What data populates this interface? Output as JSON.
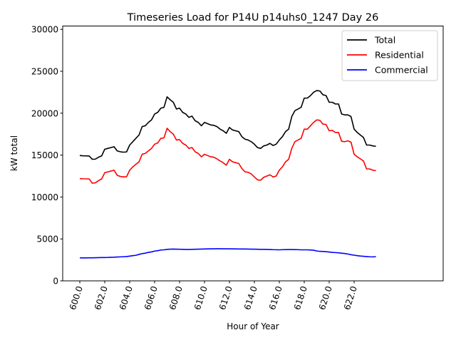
{
  "chart_data": {
    "type": "line",
    "title": "Timeseries Load for P14U p14uhs0_1247  Day 26",
    "xlabel": "Hour of Year",
    "ylabel": "kW total",
    "xlim": [
      598.8,
      624.5
    ],
    "ylim": [
      0,
      30400
    ],
    "xticks": [
      600,
      602,
      604,
      606,
      608,
      610,
      612,
      614,
      616,
      618,
      620,
      622
    ],
    "xtick_labels": [
      "600.0",
      "602.0",
      "604.0",
      "606.0",
      "608.0",
      "610.0",
      "612.0",
      "614.0",
      "616.0",
      "618.0",
      "620.0",
      "622.0"
    ],
    "yticks": [
      0,
      5000,
      10000,
      15000,
      20000,
      25000,
      30000
    ],
    "ytick_labels": [
      "0",
      "5000",
      "10000",
      "15000",
      "20000",
      "25000",
      "30000"
    ],
    "grid": false,
    "legend_position": "top-right",
    "x_start": 600,
    "x_step": 0.25,
    "series": [
      {
        "name": "Total",
        "color": "#000000",
        "values": [
          14950,
          14920,
          14910,
          14900,
          14500,
          14520,
          14750,
          14900,
          15700,
          15800,
          15900,
          16000,
          15500,
          15400,
          15350,
          15380,
          16200,
          16600,
          17000,
          17400,
          18400,
          18500,
          18900,
          19200,
          19900,
          20100,
          20600,
          20700,
          21950,
          21600,
          21300,
          20500,
          20600,
          20100,
          19900,
          19500,
          19650,
          19100,
          18900,
          18500,
          18900,
          18750,
          18600,
          18550,
          18400,
          18100,
          17900,
          17600,
          18300,
          18000,
          17900,
          17800,
          17200,
          16900,
          16800,
          16600,
          16300,
          15900,
          15800,
          16100,
          16200,
          16400,
          16150,
          16300,
          16800,
          17200,
          17800,
          18100,
          19600,
          20300,
          20500,
          20700,
          21800,
          21800,
          22100,
          22500,
          22700,
          22650,
          22200,
          22100,
          21300,
          21300,
          21100,
          21100,
          19900,
          19800,
          19800,
          19600,
          18100,
          17700,
          17400,
          17100,
          16200,
          16200,
          16100,
          16050
        ]
      },
      {
        "name": "Residential",
        "color": "#ff0000",
        "values": [
          12200,
          12180,
          12170,
          12160,
          11650,
          11700,
          11950,
          12150,
          12900,
          13000,
          13100,
          13200,
          12600,
          12450,
          12400,
          12420,
          13200,
          13600,
          13900,
          14200,
          15100,
          15200,
          15500,
          15800,
          16300,
          16450,
          17000,
          17050,
          18200,
          17800,
          17500,
          16800,
          16850,
          16400,
          16200,
          15800,
          15900,
          15400,
          15200,
          14800,
          15100,
          14950,
          14800,
          14750,
          14550,
          14300,
          14100,
          13800,
          14500,
          14200,
          14100,
          14000,
          13400,
          13000,
          12950,
          12750,
          12400,
          12050,
          12000,
          12350,
          12500,
          12650,
          12400,
          12500,
          13200,
          13600,
          14200,
          14500,
          15800,
          16600,
          16800,
          17000,
          18100,
          18100,
          18500,
          18900,
          19200,
          19150,
          18700,
          18650,
          17900,
          17950,
          17700,
          17700,
          16650,
          16600,
          16700,
          16550,
          15100,
          14800,
          14550,
          14300,
          13350,
          13350,
          13200,
          13150
        ]
      },
      {
        "name": "Commercial",
        "color": "#0000ff",
        "values": [
          2750,
          2740,
          2740,
          2750,
          2750,
          2760,
          2770,
          2780,
          2780,
          2790,
          2810,
          2820,
          2840,
          2860,
          2880,
          2900,
          2950,
          3000,
          3050,
          3150,
          3250,
          3300,
          3400,
          3450,
          3550,
          3600,
          3680,
          3700,
          3760,
          3780,
          3790,
          3780,
          3770,
          3760,
          3750,
          3750,
          3760,
          3770,
          3780,
          3790,
          3800,
          3810,
          3820,
          3820,
          3830,
          3830,
          3820,
          3820,
          3820,
          3810,
          3810,
          3800,
          3800,
          3800,
          3790,
          3780,
          3780,
          3770,
          3760,
          3760,
          3750,
          3740,
          3720,
          3710,
          3700,
          3720,
          3730,
          3740,
          3740,
          3730,
          3720,
          3700,
          3700,
          3700,
          3680,
          3650,
          3560,
          3520,
          3500,
          3480,
          3440,
          3400,
          3370,
          3340,
          3300,
          3260,
          3200,
          3120,
          3060,
          3000,
          2960,
          2930,
          2900,
          2870,
          2860,
          2880
        ]
      }
    ]
  }
}
